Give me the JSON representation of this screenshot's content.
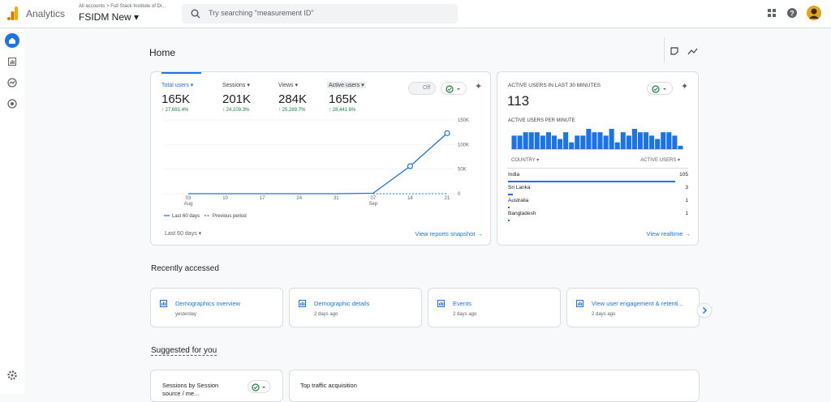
{
  "header": {
    "product": "Analytics",
    "breadcrumb": "All accounts > Full Stack Institute of Di...",
    "property": "FSIDM New",
    "search_placeholder": "Try searching \"measurement ID\""
  },
  "page_title": "Home",
  "metrics": [
    {
      "name": "Total users",
      "value": "165K",
      "change": "27,691.4%"
    },
    {
      "name": "Sessions",
      "value": "201K",
      "change": "24,109.3%"
    },
    {
      "name": "Views",
      "value": "284K",
      "change": "25,289.7%"
    },
    {
      "name": "Active users",
      "value": "165K",
      "change": "28,441.6%"
    }
  ],
  "toggle": "Off",
  "chart_data": [
    {
      "type": "line",
      "x_labels": [
        "03",
        "10",
        "17",
        "24",
        "31",
        "07",
        "14",
        "21"
      ],
      "months": [
        "Aug",
        null,
        null,
        null,
        null,
        "Sep",
        null,
        null
      ],
      "series": [
        {
          "name": "Last 60 days",
          "color": "#1a73e8",
          "values": [
            0,
            0,
            0,
            0,
            0,
            1000,
            56000,
            123000
          ]
        },
        {
          "name": "Previous period",
          "color": "#1a73e8",
          "dashed": true,
          "values": [
            null,
            null,
            null,
            null,
            null,
            0,
            0,
            0
          ]
        }
      ],
      "ylim": [
        0,
        150000
      ],
      "yticks": [
        0,
        {
          "value": 50000,
          "label": "50K"
        },
        {
          "value": 100000,
          "label": "100K"
        },
        {
          "value": 150000,
          "label": "150K"
        }
      ],
      "grid": true
    },
    {
      "type": "bar",
      "color": "#1a73e8",
      "values": [
        4,
        4,
        5,
        5,
        5,
        4,
        5,
        4,
        3,
        5,
        2,
        4,
        4,
        6,
        5,
        5,
        4,
        6,
        2,
        5,
        4,
        6,
        5,
        5,
        4,
        3,
        5,
        5,
        4,
        1
      ]
    }
  ],
  "overview_footer": {
    "range": "Last 60 days",
    "link": "View reports snapshot"
  },
  "realtime": {
    "title": "ACTIVE USERS IN LAST 30 MINUTES",
    "value": 113,
    "subtitle": "ACTIVE USERS PER MINUTE",
    "col1": "COUNTRY",
    "col2": "ACTIVE USERS",
    "rows": [
      {
        "country": "India",
        "users": 105
      },
      {
        "country": "Sri Lanka",
        "users": 3
      },
      {
        "country": "Australia",
        "users": 1
      },
      {
        "country": "Bangladesh",
        "users": 1
      }
    ],
    "link": "View realtime"
  },
  "recent": {
    "title": "Recently accessed",
    "items": [
      {
        "name": "Demographics overview",
        "time": "yesterday"
      },
      {
        "name": "Demographic details",
        "time": "2 days ago"
      },
      {
        "name": "Events",
        "time": "2 days ago"
      },
      {
        "name": "View user engagement & retenti...",
        "time": "2 days ago"
      }
    ]
  },
  "suggested": {
    "title": "Suggested for you",
    "cards": [
      "Sessions by Session source / me...",
      "Top traffic acquisition"
    ]
  }
}
